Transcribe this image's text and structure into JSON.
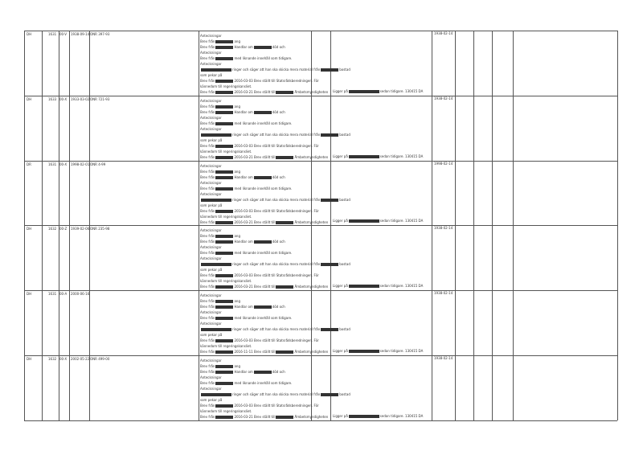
{
  "rows": [
    {
      "cells": [
        "DH",
        "1631",
        "00-V",
        "1938-09-14",
        "ONR 397-93"
      ],
      "date": "1938-02-14",
      "notes": [
        [
          "Anteckningar"
        ],
        [
          "Brev från",
          "ang"
        ],
        [
          "Brev från",
          "Handlar om",
          "död och"
        ],
        [
          "Anteckningar"
        ],
        [
          "Brev från",
          "med liknande innehåll som tidigare."
        ],
        [
          "Anteckningar"
        ],
        [
          "ringer och säger att han ska skicka mera material från",
          "bostad"
        ],
        [
          "som pekar på"
        ],
        [
          "Brev från",
          "2016-03-03 Brev ställt till Statsrådsberedningen. För"
        ],
        [
          "kännedom till regeringskansliet."
        ],
        [
          "Brev från",
          "2016-03-21 Brev ställt till",
          "Ämbetsmyndigheten"
        ]
      ],
      "status": [
        "Ligger på",
        "sedan tidigare. 130415 DA"
      ]
    },
    {
      "cells": [
        "DH",
        "1633",
        "00-X",
        "1933-03-02",
        "ONR 721-93"
      ],
      "date": "1938-02-14",
      "notes": [
        [
          "Anteckningar"
        ],
        [
          "Brev från",
          "ang"
        ],
        [
          "Brev från",
          "Handlar om",
          "död och"
        ],
        [
          "Anteckningar"
        ],
        [
          "Brev från",
          "med liknande innehåll som tidigare."
        ],
        [
          "Anteckningar"
        ],
        [
          "ringer och säger att han ska skicka mera material från",
          "bostad"
        ],
        [
          "som pekar på"
        ],
        [
          "Brev från",
          "2016-03-03 Brev ställt till Statsrådsberedningen. För"
        ],
        [
          "kännedom till regeringskansliet."
        ],
        [
          "Brev från",
          "2016-03-21 Brev ställt till",
          "Ämbetsmyndigheten"
        ]
      ],
      "status": [
        "Ligger på",
        "sedan tidigare. 130415 DA"
      ]
    },
    {
      "cells": [
        "DR",
        "1631",
        "00-X",
        "1998-02-01",
        "ONR 4-99"
      ],
      "date": "1998-02-14",
      "notes": [
        [
          "Anteckningar"
        ],
        [
          "Brev från",
          "ang"
        ],
        [
          "Brev från",
          "Handlar om",
          "död och"
        ],
        [
          "Anteckningar"
        ],
        [
          "Brev från",
          "med liknande innehåll som tidigare."
        ],
        [
          "Anteckningar"
        ],
        [
          "ringer och säger att han ska skicka mera material från",
          "bostad"
        ],
        [
          "som pekar på"
        ],
        [
          "Brev från",
          "2016-03-03 Brev ställt till Statsrådsberedningen. För"
        ],
        [
          "kännedom till regeringskansliet."
        ],
        [
          "Brev från",
          "2016-03-21 Brev ställt till",
          "Ämbetsmyndigheten"
        ]
      ],
      "status": [
        "Ligger på",
        "sedan tidigare. 130415 DA"
      ]
    },
    {
      "cells": [
        "DH",
        "1632",
        "00-Z",
        "1939-02-06",
        "ONR 235-98"
      ],
      "date": "1938-02-14",
      "notes": [
        [
          "Anteckningar"
        ],
        [
          "Brev från",
          "ang"
        ],
        [
          "Brev från",
          "Handlar om",
          "död och"
        ],
        [
          "Anteckningar"
        ],
        [
          "Brev från",
          "med liknande innehåll som tidigare."
        ],
        [
          "Anteckningar"
        ],
        [
          "ringer och säger att han ska skicka mera material från",
          "bostad"
        ],
        [
          "som pekar på"
        ],
        [
          "Brev från",
          "2016-03-03 Brev ställt till Statsrådsberedningen. För"
        ],
        [
          "kännedom till regeringskansliet."
        ],
        [
          "Brev från",
          "2016-03-21 Brev ställt till",
          "Ämbetsmyndigheten"
        ]
      ],
      "status": [
        "Ligger på",
        "sedan tidigare. 130415 DA"
      ]
    },
    {
      "cells": [
        "DH",
        "1631",
        "00-A",
        "2000-06-16"
      ],
      "date": "1938-02-14",
      "notes": [
        [
          "Anteckningar"
        ],
        [
          "Brev från",
          "ang"
        ],
        [
          "Brev från",
          "Handlar om",
          "död och"
        ],
        [
          "Anteckningar"
        ],
        [
          "Brev från",
          "med liknande innehåll som tidigare."
        ],
        [
          "Anteckningar"
        ],
        [
          "ringer och säger att han ska skicka mera material från",
          "bostad"
        ],
        [
          "som pekar på"
        ],
        [
          "Brev från",
          "2016-03-03 Brev ställt till Statsrådsberedningen. För"
        ],
        [
          "kännedom till regeringskansliet."
        ],
        [
          "Brev från",
          "2016-11-11 Brev ställt till",
          "Ämbetsmyndigheten"
        ]
      ],
      "status": [
        "Ligger på",
        "sedan tidigare. 130415 DA"
      ]
    },
    {
      "cells": [
        "DH",
        "1632",
        "00-X",
        "2002-05-22",
        "ONR 499-00"
      ],
      "date": "1938-02-14",
      "notes": [
        [
          "Anteckningar"
        ],
        [
          "Brev från",
          "ang"
        ],
        [
          "Brev från",
          "Handlar om",
          "död och"
        ],
        [
          "Anteckningar"
        ],
        [
          "Brev från",
          "med liknande innehåll som tidigare."
        ],
        [
          "Anteckningar"
        ],
        [
          "ringer och säger att han ska skicka mera material från",
          "bostad"
        ],
        [
          "som pekar på"
        ],
        [
          "Brev från",
          "2016-03-03 Brev ställt till Statsrådsberedningen. För"
        ],
        [
          "kännedom till regeringskansliet."
        ],
        [
          "Brev från",
          "2016-03-21 Brev ställt till",
          "Ämbetsmyndigheten"
        ]
      ],
      "status": [
        "Ligger på",
        "sedan tidigare. 130415 DA"
      ]
    }
  ]
}
